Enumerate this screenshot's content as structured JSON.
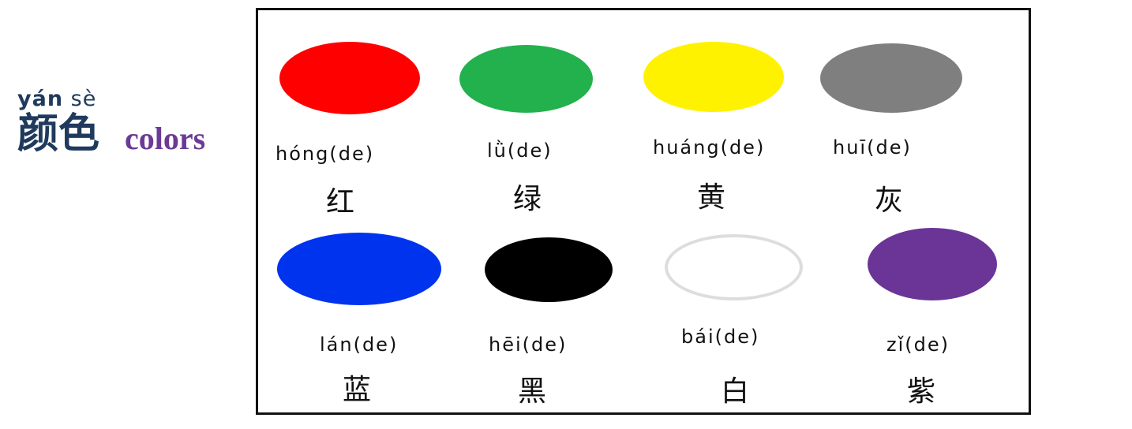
{
  "title": {
    "pinyin_syllable_1": "yán",
    "pinyin_syllable_2": "sè",
    "hanzi": "颜色",
    "english": "colors"
  },
  "colors": [
    {
      "pinyin": "hóng(de)",
      "hanzi": "红",
      "swatch_color": "#ff0000",
      "name": "red"
    },
    {
      "pinyin": "lǜ(de)",
      "hanzi": "绿",
      "swatch_color": "#22b14c",
      "name": "green"
    },
    {
      "pinyin": "huáng(de)",
      "hanzi": "黄",
      "swatch_color": "#fff200",
      "name": "yellow"
    },
    {
      "pinyin": "huī(de)",
      "hanzi": "灰",
      "swatch_color": "#7f7f7f",
      "name": "gray"
    },
    {
      "pinyin": "lán(de)",
      "hanzi": "蓝",
      "swatch_color": "#0033ee",
      "name": "blue"
    },
    {
      "pinyin": "hēi(de)",
      "hanzi": "黑",
      "swatch_color": "#000000",
      "name": "black"
    },
    {
      "pinyin": "bái(de)",
      "hanzi": "白",
      "swatch_color": "#ffffff",
      "name": "white"
    },
    {
      "pinyin": "zǐ(de)",
      "hanzi": "紫",
      "swatch_color": "#6a3597",
      "name": "purple"
    }
  ],
  "theme": {
    "title_color": "#1f3a5c",
    "english_color": "#6b3a96",
    "board_border": "#111111",
    "white_swatch_outline": "#dddddd"
  }
}
